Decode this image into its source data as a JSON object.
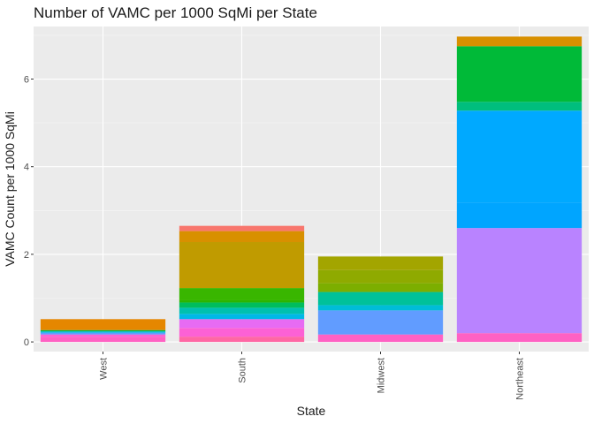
{
  "chart_data": {
    "type": "bar",
    "stacked": true,
    "title": "Number of VAMC per 1000 SqMi per State",
    "xlabel": "State",
    "ylabel": "VAMC Count per 1000 SqMi",
    "categories": [
      "West",
      "South",
      "Midwest",
      "Northeast"
    ],
    "ylim": [
      -0.22,
      7.2
    ],
    "yticks": [
      0,
      2,
      4,
      6
    ],
    "grid": true,
    "legend": "none",
    "stacks": [
      {
        "category": "West",
        "segments": [
          {
            "value": 0.12,
            "color": "#FF61C3"
          },
          {
            "value": 0.05,
            "color": "#FC61D5"
          },
          {
            "value": 0.04,
            "color": "#619CFF"
          },
          {
            "value": 0.03,
            "color": "#00B8E7"
          },
          {
            "value": 0.03,
            "color": "#00BA38"
          },
          {
            "value": 0.25,
            "color": "#E58700"
          }
        ]
      },
      {
        "category": "South",
        "segments": [
          {
            "value": 0.12,
            "color": "#FF67A4"
          },
          {
            "value": 0.2,
            "color": "#FC61D5"
          },
          {
            "value": 0.2,
            "color": "#E76BF3"
          },
          {
            "value": 0.12,
            "color": "#00B8E7"
          },
          {
            "value": 0.14,
            "color": "#00C0AF"
          },
          {
            "value": 0.12,
            "color": "#00BD5C"
          },
          {
            "value": 0.05,
            "color": "#2BB500"
          },
          {
            "value": 0.28,
            "color": "#39B600"
          },
          {
            "value": 1.05,
            "color": "#C09B00"
          },
          {
            "value": 0.25,
            "color": "#D89000"
          },
          {
            "value": 0.12,
            "color": "#F8766D"
          }
        ]
      },
      {
        "category": "Midwest",
        "segments": [
          {
            "value": 0.17,
            "color": "#FF61C3"
          },
          {
            "value": 0.55,
            "color": "#619CFF"
          },
          {
            "value": 0.12,
            "color": "#00BCD8"
          },
          {
            "value": 0.3,
            "color": "#00C19A"
          },
          {
            "value": 0.2,
            "color": "#7CAE00"
          },
          {
            "value": 0.3,
            "color": "#8FAA00"
          },
          {
            "value": 0.31,
            "color": "#A3A500"
          }
        ]
      },
      {
        "category": "Northeast",
        "segments": [
          {
            "value": 0.2,
            "color": "#FF61C3"
          },
          {
            "value": 2.4,
            "color": "#B983FF"
          },
          {
            "value": 0.58,
            "color": "#00A5FF"
          },
          {
            "value": 2.1,
            "color": "#00A9FF"
          },
          {
            "value": 0.2,
            "color": "#00BE7D"
          },
          {
            "value": 1.27,
            "color": "#00BA38"
          },
          {
            "value": 0.22,
            "color": "#D89000"
          }
        ]
      }
    ]
  }
}
